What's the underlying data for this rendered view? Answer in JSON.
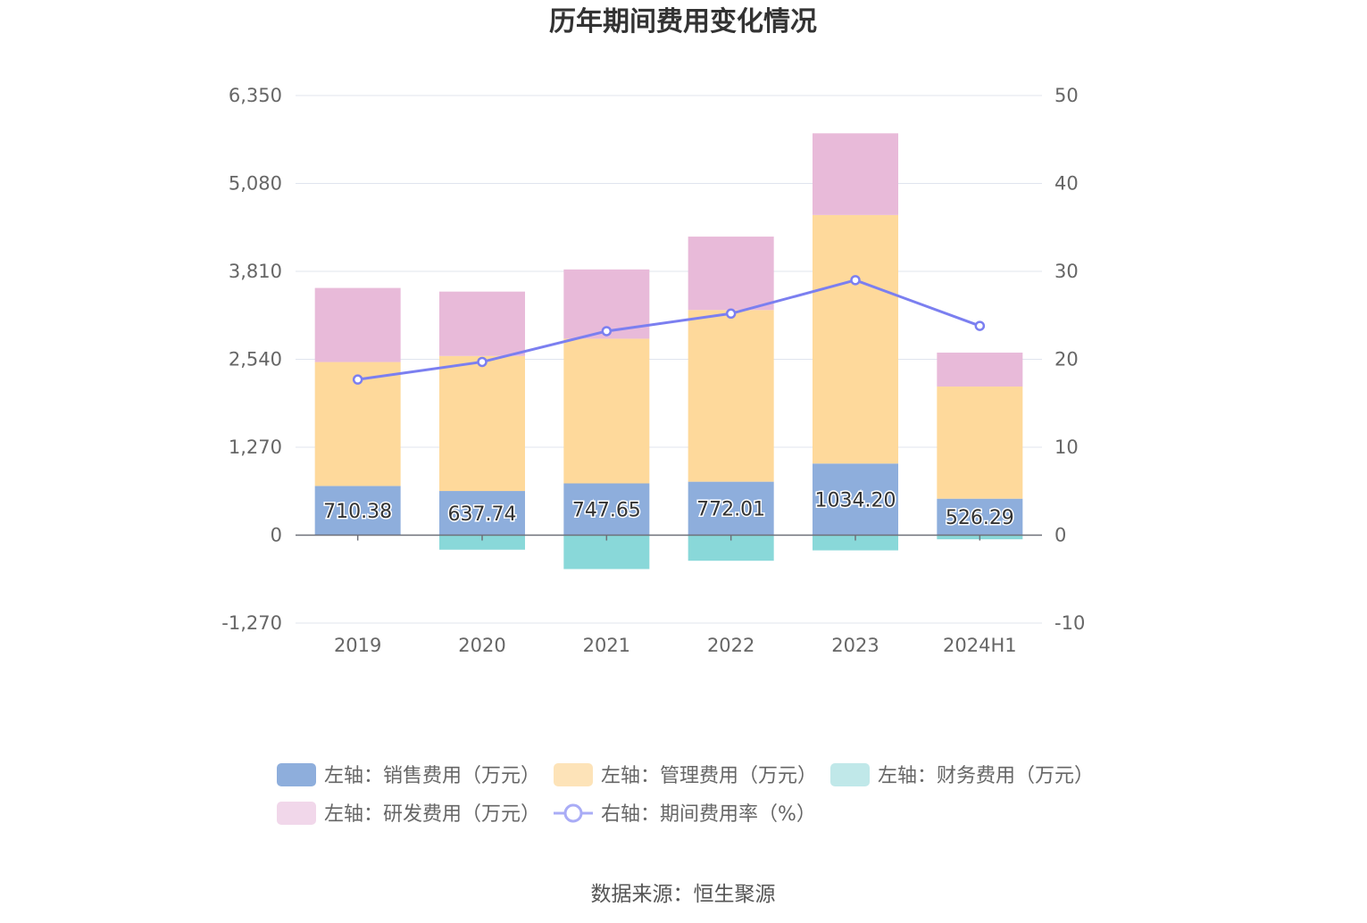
{
  "chart_data": {
    "type": "bar",
    "title": "历年期间费用变化情况",
    "categories": [
      "2019",
      "2020",
      "2021",
      "2022",
      "2023",
      "2024H1"
    ],
    "series": [
      {
        "name": "左轴：销售费用（万元）",
        "axis": "left",
        "kind": "stacked-bar",
        "color": "#8eaedc",
        "values": [
          710.38,
          637.74,
          747.65,
          772.01,
          1034.2,
          526.29
        ]
      },
      {
        "name": "左轴：管理费用（万元）",
        "axis": "left",
        "kind": "stacked-bar",
        "color": "#fed99b",
        "values": [
          1790,
          1950,
          2090,
          2480,
          3590,
          1620
        ]
      },
      {
        "name": "左轴：财务费用（万元）",
        "axis": "left",
        "kind": "stacked-bar",
        "color": "#89d8d9",
        "values": [
          0,
          -210,
          -490,
          -370,
          -220,
          -60
        ]
      },
      {
        "name": "左轴：研发费用（万元）",
        "axis": "left",
        "kind": "stacked-bar",
        "color": "#e8bad9",
        "values": [
          1070,
          930,
          1000,
          1060,
          1180,
          490
        ]
      },
      {
        "name": "右轴：期间费用率（%）",
        "axis": "right",
        "kind": "line",
        "color": "#7b7ff0",
        "values": [
          17.7,
          19.7,
          23.2,
          25.2,
          29.0,
          23.8
        ]
      }
    ],
    "label_series": 0,
    "data_labels": [
      "710.38",
      "637.74",
      "747.65",
      "772.01",
      "1034.20",
      "526.29"
    ],
    "y_left": {
      "min": -1270,
      "max": 6350,
      "ticks": [
        -1270,
        0,
        1270,
        2540,
        3810,
        5080,
        6350
      ],
      "tick_labels": [
        "-1,270",
        "0",
        "1,270",
        "2,540",
        "3,810",
        "5,080",
        "6,350"
      ]
    },
    "y_right": {
      "min": -10,
      "max": 50,
      "ticks": [
        -10,
        0,
        10,
        20,
        30,
        40,
        50
      ],
      "tick_labels": [
        "-10",
        "0",
        "10",
        "20",
        "30",
        "40",
        "50"
      ]
    },
    "grid": true,
    "legend_position": "bottom",
    "legend_colors": [
      "#8eaedc",
      "#fde3b8",
      "#c0e8e9",
      "#f1d7ea",
      "#a9acf6"
    ]
  },
  "source": "数据来源：恒生聚源"
}
